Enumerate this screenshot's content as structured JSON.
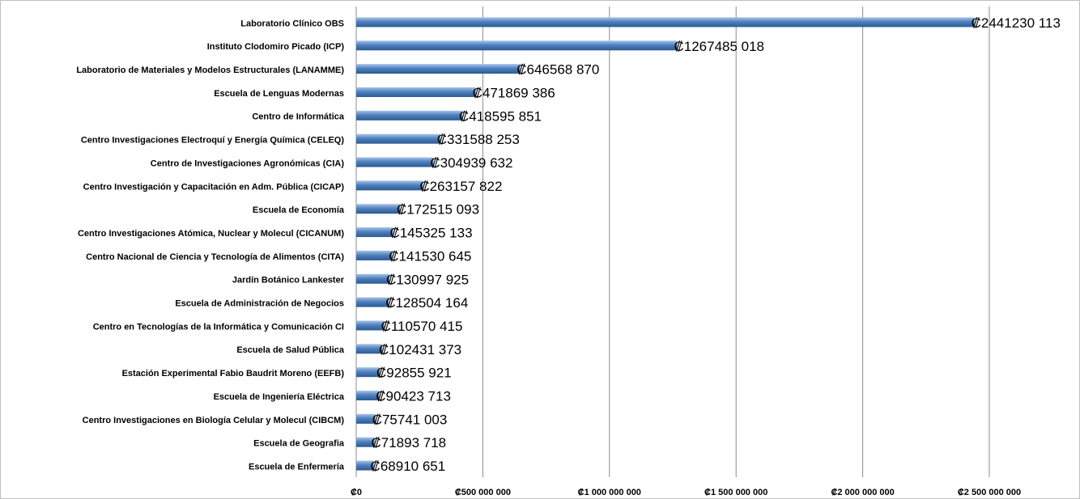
{
  "chart_data": {
    "type": "barh",
    "categories": [
      "Laboratorio Clínico OBS",
      "Instituto Clodomiro Picado (ICP)",
      "Laboratorio de Materiales y Modelos Estructurales (LANAMME)",
      "Escuela de Lenguas Modernas",
      "Centro de Informática",
      "Centro Investigaciones Electroquí y Energía Química (CELEQ)",
      "Centro de Investigaciones Agronómicas (CIA)",
      "Centro Investigación y Capacitación en Adm. Pública (CICAP)",
      "Escuela de Economía",
      "Centro Investigaciones Atómica, Nuclear y Molecul (CICANUM)",
      "Centro Nacional de Ciencia y Tecnología de Alimentos (CITA)",
      "Jardín Botánico Lankester",
      "Escuela de Administración de Negocios",
      "Centro en Tecnologías de la Informática y Comunicación CI",
      "Escuela de Salud Pública",
      "Estación Experimental Fabio Baudrit Moreno (EEFB)",
      "Escuela de Ingeniería Eléctrica",
      "Centro Investigaciones en Biología Celular y Molecul (CIBCM)",
      "Escuela de Geografia",
      "Escuela de Enfermería"
    ],
    "values": [
      2441230113,
      1267485018,
      646568870,
      471869386,
      418595851,
      331588253,
      304939632,
      263157822,
      172515093,
      145325133,
      141530645,
      130997925,
      128504164,
      110570415,
      102431373,
      92855921,
      90423713,
      75741003,
      71893718,
      68910651
    ],
    "value_labels": [
      "₡2441230 113",
      "₡1267485 018",
      "₡646568 870",
      "₡471869 386",
      "₡418595 851",
      "₡331588 253",
      "₡304939 632",
      "₡263157 822",
      "₡172515 093",
      "₡145325 133",
      "₡141530 645",
      "₡130997 925",
      "₡128504 164",
      "₡110570 415",
      "₡102431 373",
      "₡92855 921",
      "₡90423 713",
      "₡75741 003",
      "₡71893 718",
      "₡68910 651"
    ],
    "color": "#4f81bd",
    "xlim": [
      0,
      2500000000
    ],
    "xticks": [
      {
        "value": 0,
        "label": "₡0"
      },
      {
        "value": 500000000,
        "label": "₡500 000 000"
      },
      {
        "value": 1000000000,
        "label": "₡1 000 000 000"
      },
      {
        "value": 1500000000,
        "label": "₡1 500 000 000"
      },
      {
        "value": 2000000000,
        "label": "₡2 000 000 000"
      },
      {
        "value": 2500000000,
        "label": "₡2 500 000 000"
      }
    ],
    "grid": true
  }
}
